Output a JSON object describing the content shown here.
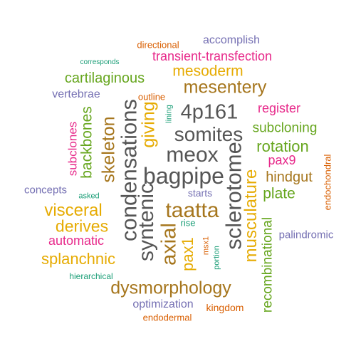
{
  "colors": {
    "gray": "#555555",
    "brown": "#a6761d",
    "gold": "#e6ab02",
    "green": "#66a61e",
    "magenta": "#e7298a",
    "purple": "#7570b3",
    "orange": "#d95f02",
    "teal": "#1b9e77"
  },
  "words": [
    {
      "text": "directional",
      "color": "orange"
    },
    {
      "text": "accomplish",
      "color": "purple"
    },
    {
      "text": "corresponds",
      "color": "teal"
    },
    {
      "text": "transient-transfection",
      "color": "magenta"
    },
    {
      "text": "mesoderm",
      "color": "gold"
    },
    {
      "text": "cartilaginous",
      "color": "green"
    },
    {
      "text": "mesentery",
      "color": "brown"
    },
    {
      "text": "vertebrae",
      "color": "purple"
    },
    {
      "text": "outline",
      "color": "orange"
    },
    {
      "text": "lining",
      "color": "teal"
    },
    {
      "text": "4p161",
      "color": "gray"
    },
    {
      "text": "register",
      "color": "magenta"
    },
    {
      "text": "somites",
      "color": "gray"
    },
    {
      "text": "subcloning",
      "color": "green"
    },
    {
      "text": "meox",
      "color": "gray"
    },
    {
      "text": "rotation",
      "color": "green"
    },
    {
      "text": "bagpipe",
      "color": "gray"
    },
    {
      "text": "pax9",
      "color": "magenta"
    },
    {
      "text": "hindgut",
      "color": "brown"
    },
    {
      "text": "concepts",
      "color": "purple"
    },
    {
      "text": "asked",
      "color": "teal"
    },
    {
      "text": "starts",
      "color": "purple"
    },
    {
      "text": "plate",
      "color": "green"
    },
    {
      "text": "taatta",
      "color": "brown"
    },
    {
      "text": "visceral",
      "color": "gold"
    },
    {
      "text": "derives",
      "color": "gold"
    },
    {
      "text": "rise",
      "color": "teal"
    },
    {
      "text": "automatic",
      "color": "magenta"
    },
    {
      "text": "palindromic",
      "color": "purple"
    },
    {
      "text": "splanchnic",
      "color": "gold"
    },
    {
      "text": "hierarchical",
      "color": "teal"
    },
    {
      "text": "dysmorphology",
      "color": "brown"
    },
    {
      "text": "optimization",
      "color": "purple"
    },
    {
      "text": "kingdom",
      "color": "orange"
    },
    {
      "text": "endodermal",
      "color": "orange"
    },
    {
      "text": "subclones",
      "color": "magenta"
    },
    {
      "text": "backbones",
      "color": "green"
    },
    {
      "text": "skeleton",
      "color": "brown"
    },
    {
      "text": "condensations",
      "color": "gray"
    },
    {
      "text": "giving",
      "color": "gold"
    },
    {
      "text": "syntenic",
      "color": "gray"
    },
    {
      "text": "axial",
      "color": "brown"
    },
    {
      "text": "pax1",
      "color": "gold"
    },
    {
      "text": "msx1",
      "color": "orange"
    },
    {
      "text": "portion",
      "color": "teal"
    },
    {
      "text": "sclerotome",
      "color": "gray"
    },
    {
      "text": "musculature",
      "color": "gold"
    },
    {
      "text": "recombinational",
      "color": "green"
    },
    {
      "text": "endochondral",
      "color": "orange"
    }
  ]
}
